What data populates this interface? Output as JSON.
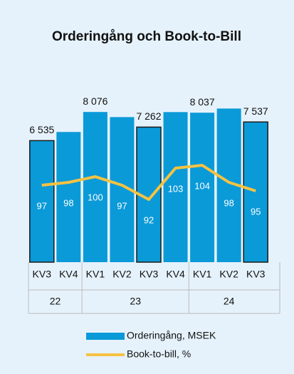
{
  "chart_data": {
    "type": "bar_line",
    "title": "Orderingång och Book-to-Bill",
    "categories": [
      "KV3",
      "KV4",
      "KV1",
      "KV2",
      "KV3",
      "KV4",
      "KV1",
      "KV2",
      "KV3"
    ],
    "category_groups": [
      {
        "label": "22",
        "count": 2
      },
      {
        "label": "23",
        "count": 4
      },
      {
        "label": "24",
        "count": 3
      }
    ],
    "series": [
      {
        "name": "Orderingång, MSEK",
        "type": "bar",
        "color": "#0a9ad8",
        "outline_color": "#1a1a1a",
        "outlined": [
          0,
          4,
          8
        ],
        "values": [
          6535,
          7000,
          8076,
          7800,
          7262,
          8070,
          8037,
          8260,
          7537
        ],
        "value_labels": [
          "6 535",
          null,
          "8 076",
          null,
          "7 262",
          null,
          "8 037",
          null,
          "7 537"
        ]
      },
      {
        "name": "Book-to-bill, %",
        "type": "line",
        "axis": "y2",
        "color": "#f5c242",
        "values": [
          97,
          98,
          100,
          97,
          92,
          103,
          104,
          98,
          95
        ]
      }
    ],
    "ylim": [
      0,
      9500
    ],
    "y2lim": [
      70,
      132
    ]
  }
}
